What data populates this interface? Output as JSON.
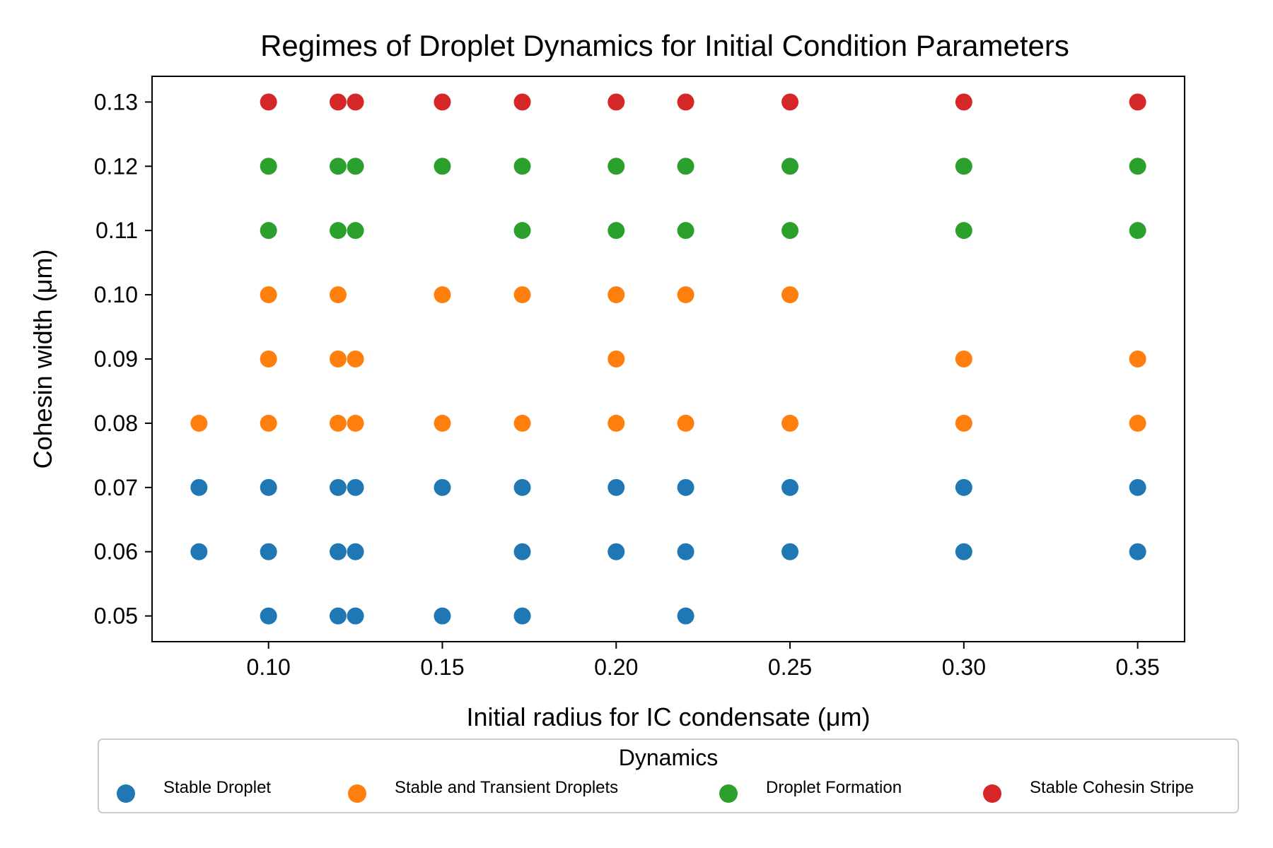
{
  "chart_data": {
    "type": "scatter",
    "title": "Regimes of Droplet Dynamics for Initial Condition Parameters",
    "xlabel": "Initial radius for IC condensate (μm)",
    "ylabel": "Cohesin width (μm)",
    "xlim": [
      0.0665,
      0.3635
    ],
    "ylim": [
      0.046,
      0.134
    ],
    "xticks": [
      0.1,
      0.15,
      0.2,
      0.25,
      0.3,
      0.35
    ],
    "xtick_labels": [
      "0.10",
      "0.15",
      "0.20",
      "0.25",
      "0.30",
      "0.35"
    ],
    "yticks": [
      0.05,
      0.06,
      0.07,
      0.08,
      0.09,
      0.1,
      0.11,
      0.12,
      0.13
    ],
    "ytick_labels": [
      "0.05",
      "0.06",
      "0.07",
      "0.08",
      "0.09",
      "0.10",
      "0.11",
      "0.12",
      "0.13"
    ],
    "grid": false,
    "legend": {
      "title": "Dynamics",
      "placement": "below plot, horizontal",
      "entries": [
        "Stable Droplet",
        "Stable and Transient Droplets",
        "Droplet Formation",
        "Stable Cohesin Stripe"
      ]
    },
    "series": [
      {
        "name": "Stable Droplet",
        "color": "#1f77b4",
        "points": [
          [
            0.08,
            0.07
          ],
          [
            0.08,
            0.06
          ],
          [
            0.1,
            0.07
          ],
          [
            0.1,
            0.06
          ],
          [
            0.1,
            0.05
          ],
          [
            0.12,
            0.07
          ],
          [
            0.12,
            0.06
          ],
          [
            0.12,
            0.05
          ],
          [
            0.125,
            0.07
          ],
          [
            0.125,
            0.06
          ],
          [
            0.125,
            0.05
          ],
          [
            0.15,
            0.07
          ],
          [
            0.15,
            0.05
          ],
          [
            0.173,
            0.07
          ],
          [
            0.173,
            0.06
          ],
          [
            0.173,
            0.05
          ],
          [
            0.2,
            0.07
          ],
          [
            0.2,
            0.06
          ],
          [
            0.22,
            0.07
          ],
          [
            0.22,
            0.06
          ],
          [
            0.22,
            0.05
          ],
          [
            0.25,
            0.07
          ],
          [
            0.25,
            0.06
          ],
          [
            0.3,
            0.07
          ],
          [
            0.3,
            0.06
          ],
          [
            0.35,
            0.07
          ],
          [
            0.35,
            0.06
          ]
        ]
      },
      {
        "name": "Stable and Transient Droplets",
        "color": "#ff7f0e",
        "points": [
          [
            0.08,
            0.08
          ],
          [
            0.1,
            0.1
          ],
          [
            0.1,
            0.09
          ],
          [
            0.1,
            0.08
          ],
          [
            0.12,
            0.1
          ],
          [
            0.12,
            0.09
          ],
          [
            0.12,
            0.08
          ],
          [
            0.125,
            0.09
          ],
          [
            0.125,
            0.08
          ],
          [
            0.15,
            0.1
          ],
          [
            0.15,
            0.08
          ],
          [
            0.173,
            0.1
          ],
          [
            0.173,
            0.08
          ],
          [
            0.2,
            0.1
          ],
          [
            0.2,
            0.09
          ],
          [
            0.2,
            0.08
          ],
          [
            0.22,
            0.1
          ],
          [
            0.22,
            0.08
          ],
          [
            0.25,
            0.1
          ],
          [
            0.25,
            0.08
          ],
          [
            0.3,
            0.09
          ],
          [
            0.3,
            0.08
          ],
          [
            0.35,
            0.09
          ],
          [
            0.35,
            0.08
          ]
        ]
      },
      {
        "name": "Droplet Formation",
        "color": "#2ca02c",
        "points": [
          [
            0.1,
            0.12
          ],
          [
            0.1,
            0.11
          ],
          [
            0.12,
            0.12
          ],
          [
            0.12,
            0.11
          ],
          [
            0.125,
            0.12
          ],
          [
            0.125,
            0.11
          ],
          [
            0.15,
            0.12
          ],
          [
            0.173,
            0.12
          ],
          [
            0.173,
            0.11
          ],
          [
            0.2,
            0.12
          ],
          [
            0.2,
            0.11
          ],
          [
            0.22,
            0.12
          ],
          [
            0.22,
            0.11
          ],
          [
            0.25,
            0.12
          ],
          [
            0.25,
            0.11
          ],
          [
            0.3,
            0.12
          ],
          [
            0.3,
            0.11
          ],
          [
            0.35,
            0.12
          ],
          [
            0.35,
            0.11
          ]
        ]
      },
      {
        "name": "Stable Cohesin Stripe",
        "color": "#d62728",
        "points": [
          [
            0.1,
            0.13
          ],
          [
            0.12,
            0.13
          ],
          [
            0.125,
            0.13
          ],
          [
            0.15,
            0.13
          ],
          [
            0.173,
            0.13
          ],
          [
            0.2,
            0.13
          ],
          [
            0.22,
            0.13
          ],
          [
            0.25,
            0.13
          ],
          [
            0.3,
            0.13
          ],
          [
            0.35,
            0.13
          ]
        ]
      }
    ]
  }
}
